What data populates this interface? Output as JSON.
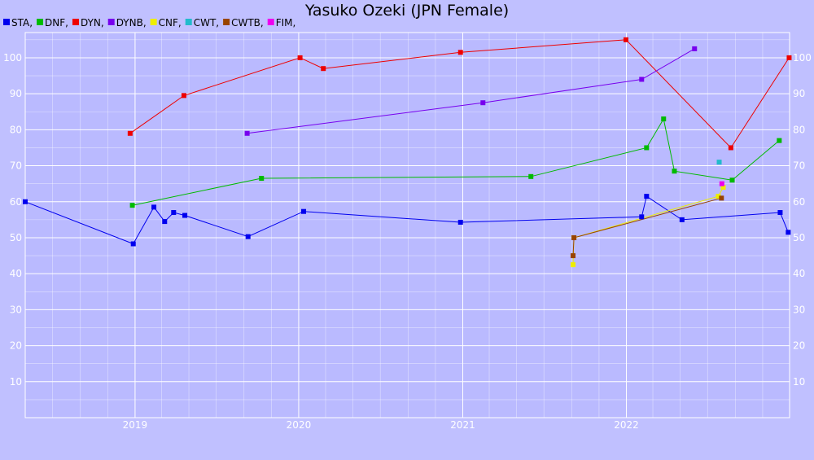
{
  "chart_data": {
    "type": "line",
    "title": "Yasuko Ozeki (JPN Female)",
    "xlabel": "",
    "ylabel": "",
    "xlim": [
      "2018-05-01",
      "2022-12-31"
    ],
    "ylim": [
      0,
      107
    ],
    "x_ticks": [
      "2019",
      "2020",
      "2021",
      "2022"
    ],
    "y_ticks": [
      10,
      20,
      30,
      40,
      50,
      60,
      70,
      80,
      90,
      100
    ],
    "grid": true,
    "legend_position": "top-left",
    "series": [
      {
        "name": "STA,",
        "color": "#0000ee",
        "points": [
          [
            "2018-05-01",
            60
          ],
          [
            "2018-12-28",
            48.3
          ],
          [
            "2019-02-12",
            58.5
          ],
          [
            "2019-03-08",
            54.5
          ],
          [
            "2019-03-28",
            57
          ],
          [
            "2019-04-22",
            56.2
          ],
          [
            "2019-09-10",
            50.3
          ],
          [
            "2020-01-12",
            57.3
          ],
          [
            "2020-12-27",
            54.3
          ],
          [
            "2022-02-04",
            55.8
          ],
          [
            "2022-02-15",
            61.5
          ],
          [
            "2022-05-05",
            55
          ],
          [
            "2022-12-10",
            57
          ],
          [
            "2022-12-28",
            51.5
          ]
        ]
      },
      {
        "name": "DNF,",
        "color": "#00bb00",
        "points": [
          [
            "2018-12-26",
            59
          ],
          [
            "2019-10-10",
            66.5
          ],
          [
            "2021-06-02",
            67
          ],
          [
            "2022-02-15",
            75
          ],
          [
            "2022-03-25",
            83
          ],
          [
            "2022-04-18",
            68.5
          ],
          [
            "2022-08-25",
            66
          ],
          [
            "2022-12-08",
            77
          ]
        ]
      },
      {
        "name": "DYN,",
        "color": "#ee0000",
        "points": [
          [
            "2018-12-21",
            79
          ],
          [
            "2019-04-20",
            89.5
          ],
          [
            "2020-01-04",
            100
          ],
          [
            "2020-02-25",
            97
          ],
          [
            "2020-12-27",
            101.5
          ],
          [
            "2021-12-31",
            105
          ],
          [
            "2022-08-22",
            75
          ],
          [
            "2022-12-30",
            100
          ]
        ]
      },
      {
        "name": "DYNB,",
        "color": "#7700ee",
        "points": [
          [
            "2019-09-08",
            79
          ],
          [
            "2021-02-15",
            87.5
          ],
          [
            "2022-02-04",
            94
          ],
          [
            "2022-06-02",
            102.5
          ]
        ]
      },
      {
        "name": "CNF,",
        "color": "#eeee00",
        "points": [
          [
            "2021-09-04",
            42.5
          ],
          [
            "2021-09-06",
            50
          ],
          [
            "2022-07-25",
            61.5
          ],
          [
            "2022-08-05",
            64
          ]
        ]
      },
      {
        "name": "CWT,",
        "color": "#22bbcc",
        "points": [
          [
            "2022-07-27",
            71
          ]
        ]
      },
      {
        "name": "CWTB,",
        "color": "#994400",
        "points": [
          [
            "2021-09-04",
            45
          ],
          [
            "2021-09-06",
            50
          ],
          [
            "2022-08-01",
            61
          ]
        ]
      },
      {
        "name": "FIM,",
        "color": "#ee00ee",
        "points": [
          [
            "2022-08-02",
            65
          ]
        ]
      }
    ]
  }
}
